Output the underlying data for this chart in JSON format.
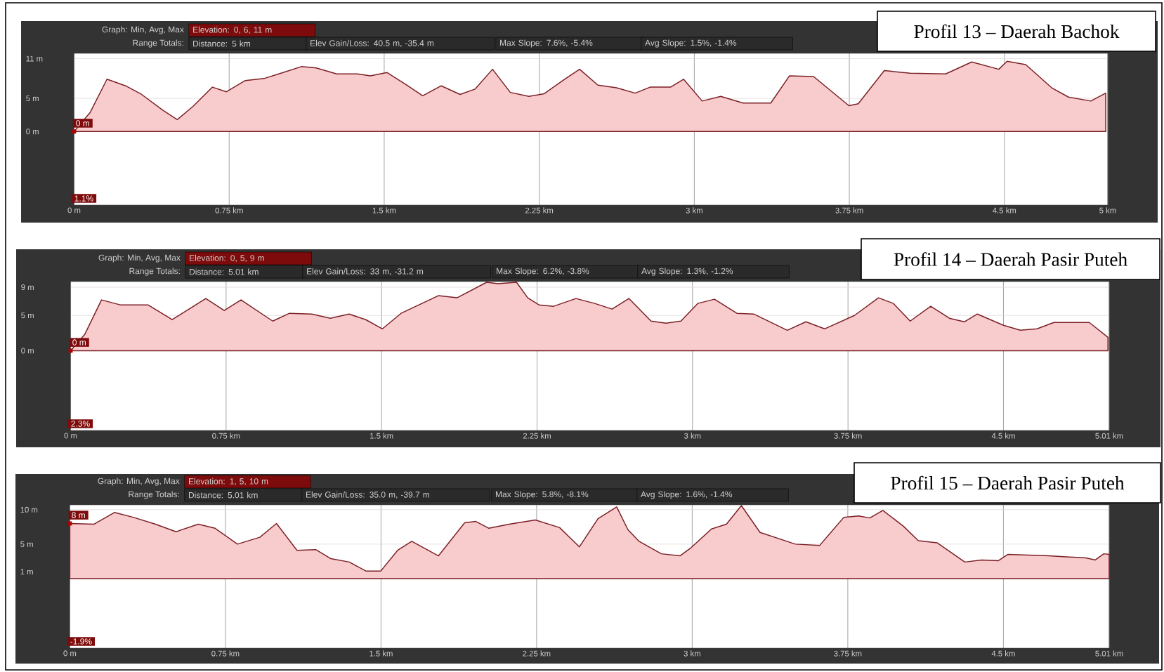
{
  "chart_data": [
    {
      "type": "area",
      "title": "Profil 13 – Daerah Bachok",
      "color": "#f8cbcd",
      "grid": true,
      "x": [
        0,
        0.078,
        0.159,
        0.249,
        0.322,
        0.43,
        0.499,
        0.575,
        0.669,
        0.737,
        0.828,
        0.918,
        0.99,
        1.099,
        1.171,
        1.27,
        1.37,
        1.433,
        1.514,
        1.605,
        1.686,
        1.776,
        1.867,
        1.939,
        2.024,
        2.11,
        2.2,
        2.273,
        2.364,
        2.445,
        2.534,
        2.624,
        2.714,
        2.786,
        2.885,
        2.948,
        3.038,
        3.128,
        3.236,
        3.37,
        3.46,
        3.577,
        3.748,
        3.793,
        3.919,
        4.045,
        4.216,
        4.342,
        4.473,
        4.513,
        4.603,
        4.729,
        4.81,
        4.918,
        4.99
      ],
      "values": [
        0,
        2.9,
        7.9,
        6.9,
        5.7,
        3.2,
        1.8,
        3.8,
        6.7,
        6.0,
        7.7,
        8.0,
        8.7,
        9.8,
        9.6,
        8.7,
        8.7,
        8.4,
        8.9,
        7.1,
        5.4,
        6.9,
        5.6,
        6.4,
        9.4,
        5.9,
        5.3,
        5.7,
        7.7,
        9.4,
        7.0,
        6.6,
        5.8,
        6.7,
        6.7,
        7.9,
        4.6,
        5.3,
        4.3,
        4.3,
        8.4,
        8.3,
        3.9,
        4.2,
        9.2,
        8.8,
        8.7,
        10.5,
        9.4,
        10.6,
        10.1,
        6.6,
        5.2,
        4.6,
        5.8
      ],
      "xlim": [
        0,
        5
      ],
      "ylim": [
        -11.1,
        11.8
      ],
      "xticks": [
        {
          "value": 0,
          "label": "0 m"
        },
        {
          "value": 0.75,
          "label": "0.75 km"
        },
        {
          "value": 1.5,
          "label": "1.5 km"
        },
        {
          "value": 2.25,
          "label": "2.25 km"
        },
        {
          "value": 3,
          "label": "3 km"
        },
        {
          "value": 3.75,
          "label": "3.75 km"
        },
        {
          "value": 4.5,
          "label": "4.5 km"
        },
        {
          "value": 5,
          "label": "5 km"
        }
      ],
      "yticks": [
        {
          "value": 0,
          "label": "0 m"
        },
        {
          "value": 5,
          "label": "5 m"
        },
        {
          "value": 11,
          "label": "11 m"
        }
      ],
      "annotations": [
        "Graph: Min, Avg, Max",
        "Elevation: 0, 6, 11 m",
        "Range Totals:",
        "Distance: 5 km",
        "Elev Gain/Loss: 40.5 m, -35.4 m",
        "Max Slope: 7.6%, -5.4%",
        "Avg Slope: 1.5%, -1.4%",
        "0 m",
        "1.1%"
      ]
    },
    {
      "type": "area",
      "title": "Profil 14 – Daerah Pasir Puteh",
      "color": "#f8cbcd",
      "grid": true,
      "x": [
        0,
        0.068,
        0.149,
        0.239,
        0.373,
        0.49,
        0.652,
        0.741,
        0.822,
        0.975,
        1.056,
        1.163,
        1.253,
        1.343,
        1.424,
        1.504,
        1.594,
        1.774,
        1.864,
        2.007,
        2.061,
        2.151,
        2.205,
        2.259,
        2.33,
        2.438,
        2.528,
        2.612,
        2.693,
        2.8,
        2.872,
        2.944,
        3.025,
        3.106,
        3.214,
        3.295,
        3.457,
        3.547,
        3.637,
        3.781,
        3.897,
        3.969,
        4.05,
        4.149,
        4.239,
        4.311,
        4.374,
        4.5,
        4.581,
        4.662,
        4.743,
        4.914,
        5.004
      ],
      "values": [
        0,
        2.3,
        7.2,
        6.5,
        6.5,
        4.4,
        7.4,
        5.7,
        7.2,
        4.2,
        5.3,
        5.2,
        4.6,
        5.2,
        4.4,
        3.1,
        5.3,
        7.8,
        7.5,
        9.7,
        9.5,
        9.7,
        7.5,
        6.5,
        6.3,
        7.4,
        6.7,
        5.9,
        7.4,
        4.2,
        3.9,
        4.2,
        6.7,
        7.3,
        5.3,
        5.2,
        2.9,
        4.1,
        3.1,
        5.0,
        7.5,
        6.7,
        4.2,
        6.3,
        4.6,
        4.1,
        5.2,
        3.6,
        2.9,
        3.1,
        4.0,
        4.0,
        1.9
      ],
      "xlim": [
        0,
        5.01
      ],
      "ylim": [
        -11.3,
        9.8
      ],
      "xticks": [
        {
          "value": 0,
          "label": "0 m"
        },
        {
          "value": 0.75,
          "label": "0.75 km"
        },
        {
          "value": 1.5,
          "label": "1.5 km"
        },
        {
          "value": 2.25,
          "label": "2.25 km"
        },
        {
          "value": 3,
          "label": "3 km"
        },
        {
          "value": 3.75,
          "label": "3.75 km"
        },
        {
          "value": 4.5,
          "label": "4.5 km"
        },
        {
          "value": 5.01,
          "label": "5.01 km"
        }
      ],
      "yticks": [
        {
          "value": 0,
          "label": "0 m"
        },
        {
          "value": 5,
          "label": "5 m"
        },
        {
          "value": 9,
          "label": "9 m"
        }
      ],
      "annotations": [
        "Graph: Min, Avg, Max",
        "Elevation: 0, 5, 9 m",
        "Range Totals:",
        "Distance: 5.01 km",
        "Elev Gain/Loss: 33 m, -31.2 m",
        "Max Slope: 6.2%, -3.8%",
        "Avg Slope: 1.3%, -1.2%",
        "0 m",
        "2.3%"
      ]
    },
    {
      "type": "area",
      "title": "Profil 15 – Daerah Pasir Puteh",
      "color": "#f8cbcd",
      "grid": true,
      "x": [
        0,
        0.117,
        0.215,
        0.305,
        0.413,
        0.512,
        0.619,
        0.7,
        0.808,
        0.916,
        0.996,
        1.095,
        1.185,
        1.257,
        1.347,
        1.427,
        1.499,
        1.58,
        1.648,
        1.777,
        1.903,
        1.957,
        2.02,
        2.118,
        2.244,
        2.361,
        2.456,
        2.546,
        2.636,
        2.69,
        2.744,
        2.851,
        2.941,
        2.995,
        3.093,
        3.165,
        3.237,
        3.327,
        3.497,
        3.614,
        3.731,
        3.802,
        3.856,
        3.919,
        4.018,
        4.09,
        4.18,
        4.314,
        4.395,
        4.476,
        4.521,
        4.718,
        4.898,
        4.943,
        4.984,
        5.01
      ],
      "values": [
        8,
        7.9,
        9.6,
        8.9,
        7.9,
        6.8,
        7.9,
        7.3,
        5.0,
        6.0,
        8.0,
        4.1,
        4.2,
        2.9,
        2.4,
        1.1,
        1.1,
        4.1,
        5.4,
        3.3,
        8.1,
        8.3,
        7.3,
        7.9,
        8.5,
        7.4,
        4.6,
        8.7,
        10.4,
        7.1,
        5.4,
        3.6,
        3.3,
        4.5,
        7.2,
        7.9,
        10.6,
        6.7,
        5.0,
        4.8,
        8.9,
        9.1,
        8.8,
        9.9,
        7.6,
        5.5,
        5.2,
        2.4,
        2.7,
        2.6,
        3.5,
        3.3,
        3.0,
        2.7,
        3.6,
        3.5
      ],
      "xlim": [
        0,
        5.01
      ],
      "ylim": [
        -10.1,
        10.7
      ],
      "xticks": [
        {
          "value": 0,
          "label": "0 m"
        },
        {
          "value": 0.75,
          "label": "0.75 km"
        },
        {
          "value": 1.5,
          "label": "1.5 km"
        },
        {
          "value": 2.25,
          "label": "2.25 km"
        },
        {
          "value": 3,
          "label": "3 km"
        },
        {
          "value": 3.75,
          "label": "3.75 km"
        },
        {
          "value": 4.5,
          "label": "4.5 km"
        },
        {
          "value": 5.01,
          "label": "5.01 km"
        }
      ],
      "yticks": [
        {
          "value": 1,
          "label": "1 m"
        },
        {
          "value": 5,
          "label": "5 m"
        },
        {
          "value": 10,
          "label": "10 m"
        }
      ],
      "annotations": [
        "Graph: Min, Avg, Max",
        "Elevation: 1, 5, 10 m",
        "Range Totals:",
        "Distance: 5.01 km",
        "Elev Gain/Loss: 35.0 m, -39.7 m",
        "Max Slope: 5.8%, -8.1%",
        "Avg Slope: 1.6%, -1.4%",
        "8 m",
        "-1.9%"
      ]
    }
  ]
}
